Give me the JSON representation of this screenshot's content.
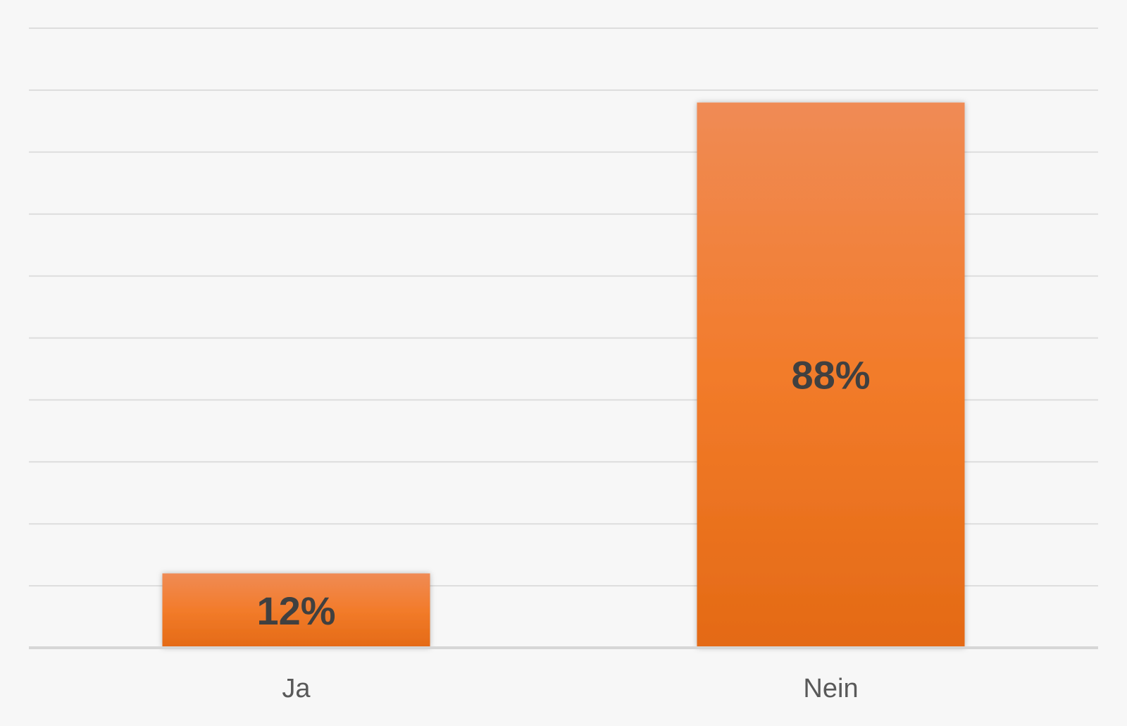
{
  "chart_data": {
    "type": "bar",
    "categories": [
      "Ja",
      "Nein"
    ],
    "values": [
      12,
      88
    ],
    "data_labels": [
      "12%",
      "88%"
    ],
    "ylim": [
      0,
      100
    ],
    "grid": true,
    "gridline_step": 10,
    "legend": "none"
  },
  "colors": {
    "background": "#f7f7f7",
    "grid": "#dddddd",
    "axis": "#d6d6d6",
    "bar_top": "#f08b55",
    "bar_mid": "#f27b2a",
    "bar_bottom": "#e46a15"
  }
}
